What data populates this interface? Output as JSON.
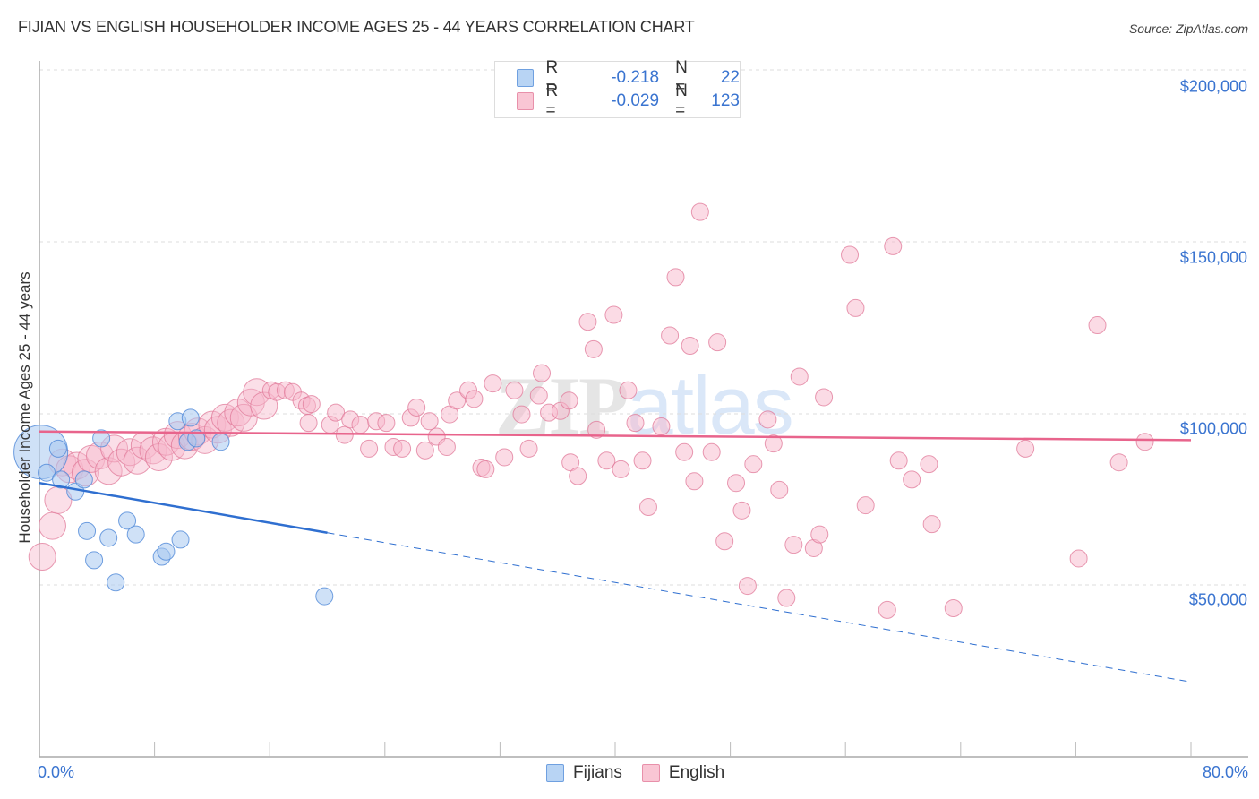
{
  "header": {
    "title": "FIJIAN VS ENGLISH HOUSEHOLDER INCOME AGES 25 - 44 YEARS CORRELATION CHART",
    "source": "Source: ZipAtlas.com"
  },
  "legend": {
    "rows": [
      {
        "r_label": "R =",
        "r_value": "-0.218",
        "n_label": "N =",
        "n_value": "22",
        "color": "#a8c8f0",
        "border": "#6fa0e0"
      },
      {
        "r_label": "R =",
        "r_value": "-0.029",
        "n_label": "N =",
        "n_value": "123",
        "color": "#f8c0d0",
        "border": "#e890aa"
      }
    ]
  },
  "bottom_legend": [
    {
      "label": "Fijians",
      "color": "#b8d4f4",
      "border": "#6fa0e0"
    },
    {
      "label": "English",
      "color": "#f9c6d4",
      "border": "#e890aa"
    }
  ],
  "watermark": {
    "zip": "ZIP",
    "atlas": "atlas"
  },
  "axes": {
    "y_label": "Householder Income Ages 25 - 44 years",
    "y_ticks": [
      "$200,000",
      "$150,000",
      "$100,000",
      "$50,000"
    ],
    "x_ticks": [
      "0.0%",
      "80.0%"
    ]
  },
  "colors": {
    "fijian_fill": "#a8c8f0",
    "fijian_stroke": "#4f88d8",
    "fijian_line": "#2f6fd0",
    "english_fill": "#f7b8cb",
    "english_stroke": "#e07898",
    "english_line": "#e8648c",
    "tick_text": "#3a74d0"
  },
  "chart_data": {
    "type": "scatter",
    "title": "FIJIAN VS ENGLISH HOUSEHOLDER INCOME AGES 25 - 44 YEARS CORRELATION CHART",
    "xlabel": "",
    "ylabel": "Householder Income Ages 25 - 44 years",
    "xlim": [
      0,
      80
    ],
    "ylim": [
      0,
      210000
    ],
    "x_unit": "%",
    "grid": true,
    "legend_position": "top-center and bottom",
    "series": [
      {
        "name": "Fijians",
        "R": -0.218,
        "N": 22,
        "trend": {
          "x": [
            0,
            20,
            80
          ],
          "y": [
            80000,
            65500,
            22000
          ],
          "solid_until_x": 20
        },
        "points": [
          {
            "x": 0.1,
            "y": 89000,
            "size": 3
          },
          {
            "x": 0.5,
            "y": 83000
          },
          {
            "x": 1.3,
            "y": 90000
          },
          {
            "x": 1.5,
            "y": 81000
          },
          {
            "x": 2.5,
            "y": 77500
          },
          {
            "x": 3.1,
            "y": 81000
          },
          {
            "x": 3.3,
            "y": 66000
          },
          {
            "x": 3.8,
            "y": 57500
          },
          {
            "x": 4.3,
            "y": 93000
          },
          {
            "x": 4.8,
            "y": 64000
          },
          {
            "x": 5.3,
            "y": 51000
          },
          {
            "x": 6.1,
            "y": 69000
          },
          {
            "x": 6.7,
            "y": 65000
          },
          {
            "x": 8.5,
            "y": 58500
          },
          {
            "x": 8.8,
            "y": 60000
          },
          {
            "x": 9.6,
            "y": 98000
          },
          {
            "x": 9.8,
            "y": 63500
          },
          {
            "x": 10.3,
            "y": 92000
          },
          {
            "x": 10.5,
            "y": 99000
          },
          {
            "x": 10.9,
            "y": 93000
          },
          {
            "x": 12.6,
            "y": 92000
          },
          {
            "x": 19.8,
            "y": 47000
          }
        ]
      },
      {
        "name": "English",
        "R": -0.029,
        "N": 123,
        "trend": {
          "x": [
            0,
            80
          ],
          "y": [
            95000,
            92500
          ]
        },
        "points": [
          {
            "x": 0.2,
            "y": 58500
          },
          {
            "x": 0.9,
            "y": 67500
          },
          {
            "x": 1.3,
            "y": 75000
          },
          {
            "x": 1.6,
            "y": 86000
          },
          {
            "x": 2.1,
            "y": 84000
          },
          {
            "x": 2.6,
            "y": 85000
          },
          {
            "x": 3.2,
            "y": 83000
          },
          {
            "x": 3.6,
            "y": 87000
          },
          {
            "x": 4.2,
            "y": 88000
          },
          {
            "x": 4.8,
            "y": 83500
          },
          {
            "x": 5.2,
            "y": 90000
          },
          {
            "x": 5.7,
            "y": 86000
          },
          {
            "x": 6.3,
            "y": 89000
          },
          {
            "x": 6.8,
            "y": 86500
          },
          {
            "x": 7.3,
            "y": 91000
          },
          {
            "x": 7.9,
            "y": 89500
          },
          {
            "x": 8.3,
            "y": 87500
          },
          {
            "x": 8.8,
            "y": 92000
          },
          {
            "x": 9.2,
            "y": 90500
          },
          {
            "x": 9.6,
            "y": 94000
          },
          {
            "x": 10.1,
            "y": 91000
          },
          {
            "x": 10.6,
            "y": 93500
          },
          {
            "x": 11.0,
            "y": 95000
          },
          {
            "x": 11.5,
            "y": 92500
          },
          {
            "x": 12.0,
            "y": 97000
          },
          {
            "x": 12.4,
            "y": 95500
          },
          {
            "x": 12.9,
            "y": 99000
          },
          {
            "x": 13.3,
            "y": 97500
          },
          {
            "x": 13.8,
            "y": 100500
          },
          {
            "x": 14.2,
            "y": 99000
          },
          {
            "x": 14.7,
            "y": 103500
          },
          {
            "x": 15.1,
            "y": 106500
          },
          {
            "x": 15.6,
            "y": 102500
          },
          {
            "x": 16.1,
            "y": 107000
          },
          {
            "x": 16.5,
            "y": 106500
          },
          {
            "x": 17.1,
            "y": 107000
          },
          {
            "x": 17.6,
            "y": 106500
          },
          {
            "x": 18.2,
            "y": 104000
          },
          {
            "x": 18.6,
            "y": 102500
          },
          {
            "x": 18.9,
            "y": 103000
          },
          {
            "x": 18.7,
            "y": 97500
          },
          {
            "x": 20.2,
            "y": 97000
          },
          {
            "x": 20.6,
            "y": 100500
          },
          {
            "x": 21.2,
            "y": 94000
          },
          {
            "x": 21.6,
            "y": 98500
          },
          {
            "x": 22.3,
            "y": 97000
          },
          {
            "x": 22.9,
            "y": 90000
          },
          {
            "x": 23.4,
            "y": 98000
          },
          {
            "x": 24.1,
            "y": 97500
          },
          {
            "x": 24.6,
            "y": 90500
          },
          {
            "x": 25.2,
            "y": 90000
          },
          {
            "x": 25.8,
            "y": 99000
          },
          {
            "x": 26.2,
            "y": 102000
          },
          {
            "x": 26.8,
            "y": 89500
          },
          {
            "x": 27.1,
            "y": 98000
          },
          {
            "x": 27.6,
            "y": 93500
          },
          {
            "x": 28.3,
            "y": 90500
          },
          {
            "x": 28.5,
            "y": 100000
          },
          {
            "x": 29.0,
            "y": 104000
          },
          {
            "x": 29.8,
            "y": 107000
          },
          {
            "x": 30.2,
            "y": 104500
          },
          {
            "x": 30.7,
            "y": 84500
          },
          {
            "x": 31.0,
            "y": 84000
          },
          {
            "x": 31.5,
            "y": 109000
          },
          {
            "x": 32.3,
            "y": 87500
          },
          {
            "x": 33.0,
            "y": 107000
          },
          {
            "x": 33.5,
            "y": 100000
          },
          {
            "x": 34.0,
            "y": 90000
          },
          {
            "x": 34.7,
            "y": 105500
          },
          {
            "x": 34.9,
            "y": 112000
          },
          {
            "x": 35.4,
            "y": 100500
          },
          {
            "x": 36.2,
            "y": 101000
          },
          {
            "x": 36.8,
            "y": 104000
          },
          {
            "x": 36.9,
            "y": 86000
          },
          {
            "x": 37.4,
            "y": 82000
          },
          {
            "x": 38.1,
            "y": 127000
          },
          {
            "x": 38.5,
            "y": 119000
          },
          {
            "x": 38.7,
            "y": 95500
          },
          {
            "x": 39.4,
            "y": 86500
          },
          {
            "x": 39.9,
            "y": 129000
          },
          {
            "x": 40.4,
            "y": 84000
          },
          {
            "x": 40.9,
            "y": 107000
          },
          {
            "x": 41.4,
            "y": 97500
          },
          {
            "x": 41.9,
            "y": 86500
          },
          {
            "x": 42.3,
            "y": 73000
          },
          {
            "x": 43.2,
            "y": 96500
          },
          {
            "x": 43.8,
            "y": 123000
          },
          {
            "x": 44.2,
            "y": 140000
          },
          {
            "x": 44.8,
            "y": 89000
          },
          {
            "x": 45.2,
            "y": 120000
          },
          {
            "x": 45.5,
            "y": 80500
          },
          {
            "x": 45.9,
            "y": 159000
          },
          {
            "x": 46.7,
            "y": 89000
          },
          {
            "x": 47.1,
            "y": 121000
          },
          {
            "x": 47.6,
            "y": 63000
          },
          {
            "x": 48.4,
            "y": 80000
          },
          {
            "x": 48.8,
            "y": 72000
          },
          {
            "x": 49.2,
            "y": 50000
          },
          {
            "x": 49.6,
            "y": 85500
          },
          {
            "x": 51.0,
            "y": 91500
          },
          {
            "x": 50.6,
            "y": 98500
          },
          {
            "x": 51.4,
            "y": 78000
          },
          {
            "x": 51.9,
            "y": 46500
          },
          {
            "x": 52.4,
            "y": 62000
          },
          {
            "x": 52.8,
            "y": 111000
          },
          {
            "x": 53.8,
            "y": 61000
          },
          {
            "x": 54.2,
            "y": 65000
          },
          {
            "x": 54.5,
            "y": 105000
          },
          {
            "x": 56.3,
            "y": 146500
          },
          {
            "x": 56.7,
            "y": 131000
          },
          {
            "x": 57.4,
            "y": 73500
          },
          {
            "x": 58.9,
            "y": 43000
          },
          {
            "x": 59.3,
            "y": 149000
          },
          {
            "x": 59.7,
            "y": 86500
          },
          {
            "x": 60.6,
            "y": 81000
          },
          {
            "x": 61.8,
            "y": 85500
          },
          {
            "x": 62.0,
            "y": 68000
          },
          {
            "x": 63.5,
            "y": 43500
          },
          {
            "x": 68.5,
            "y": 90000
          },
          {
            "x": 72.2,
            "y": 58000
          },
          {
            "x": 73.5,
            "y": 126000
          },
          {
            "x": 75.0,
            "y": 86000
          },
          {
            "x": 76.8,
            "y": 92000
          }
        ]
      }
    ]
  }
}
